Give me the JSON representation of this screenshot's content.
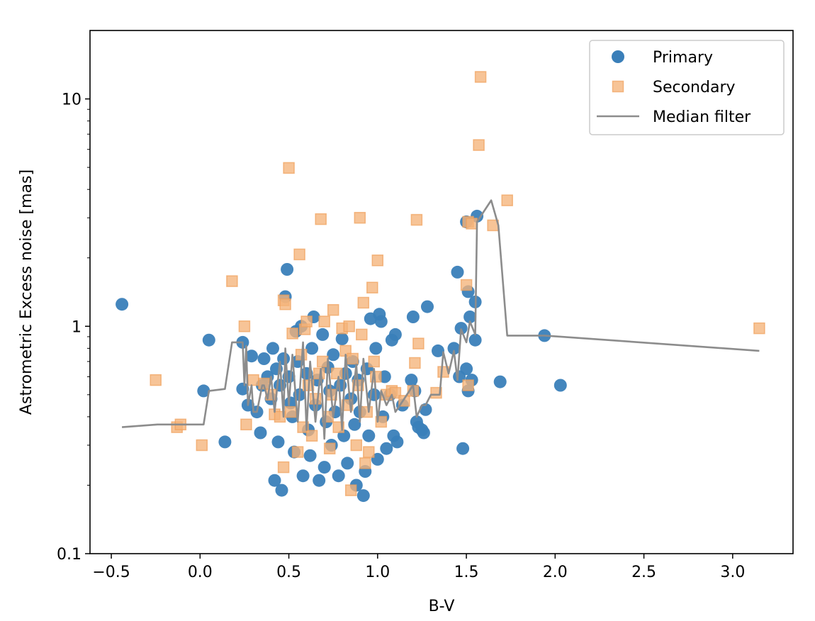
{
  "chart_data": {
    "type": "scatter",
    "title": "",
    "xlabel": "B-V",
    "ylabel": "Astrometric Excess noise [mas]",
    "xlim": [
      -0.62,
      3.34
    ],
    "ylim": [
      0.1,
      20
    ],
    "yscale": "log",
    "grid": false,
    "legend_position": "top-right",
    "xticks": [
      {
        "value": -0.5,
        "label": "−0.5"
      },
      {
        "value": 0.0,
        "label": "0.0"
      },
      {
        "value": 0.5,
        "label": "0.5"
      },
      {
        "value": 1.0,
        "label": "1.0"
      },
      {
        "value": 1.5,
        "label": "1.5"
      },
      {
        "value": 2.0,
        "label": "2.0"
      },
      {
        "value": 2.5,
        "label": "2.5"
      },
      {
        "value": 3.0,
        "label": "3.0"
      }
    ],
    "yticks": [
      {
        "value": 0.1,
        "label": "0.1"
      },
      {
        "value": 1,
        "label": "1"
      },
      {
        "value": 10,
        "label": "10"
      }
    ],
    "legend": [
      {
        "name": "Primary",
        "marker": "circle",
        "color": "#3a7fb9"
      },
      {
        "name": "Secondary",
        "marker": "square",
        "color": "#f5b47a"
      },
      {
        "name": "Median filter",
        "marker": "line",
        "color": "#8c8c8c"
      }
    ],
    "series": [
      {
        "name": "Primary",
        "marker": "circle",
        "color": "#3a7fb9",
        "points": [
          [
            -0.44,
            1.25
          ],
          [
            0.02,
            0.52
          ],
          [
            0.05,
            0.87
          ],
          [
            0.14,
            0.31
          ],
          [
            0.24,
            0.85
          ],
          [
            0.24,
            0.53
          ],
          [
            0.27,
            0.45
          ],
          [
            0.29,
            0.74
          ],
          [
            0.32,
            0.42
          ],
          [
            0.34,
            0.34
          ],
          [
            0.35,
            0.55
          ],
          [
            0.36,
            0.72
          ],
          [
            0.38,
            0.6
          ],
          [
            0.4,
            0.48
          ],
          [
            0.41,
            0.8
          ],
          [
            0.42,
            0.21
          ],
          [
            0.43,
            0.65
          ],
          [
            0.44,
            0.31
          ],
          [
            0.45,
            0.55
          ],
          [
            0.46,
            0.19
          ],
          [
            0.47,
            0.72
          ],
          [
            0.48,
            1.35
          ],
          [
            0.49,
            1.78
          ],
          [
            0.5,
            0.6
          ],
          [
            0.51,
            0.46
          ],
          [
            0.52,
            0.4
          ],
          [
            0.53,
            0.28
          ],
          [
            0.54,
            0.95
          ],
          [
            0.55,
            0.7
          ],
          [
            0.56,
            0.5
          ],
          [
            0.57,
            1.0
          ],
          [
            0.58,
            0.22
          ],
          [
            0.6,
            0.62
          ],
          [
            0.61,
            0.35
          ],
          [
            0.62,
            0.27
          ],
          [
            0.63,
            0.8
          ],
          [
            0.64,
            1.1
          ],
          [
            0.65,
            0.45
          ],
          [
            0.66,
            0.58
          ],
          [
            0.67,
            0.21
          ],
          [
            0.69,
            0.92
          ],
          [
            0.7,
            0.24
          ],
          [
            0.71,
            0.38
          ],
          [
            0.72,
            0.66
          ],
          [
            0.73,
            0.52
          ],
          [
            0.74,
            0.3
          ],
          [
            0.75,
            0.75
          ],
          [
            0.76,
            0.42
          ],
          [
            0.78,
            0.22
          ],
          [
            0.79,
            0.55
          ],
          [
            0.8,
            0.88
          ],
          [
            0.81,
            0.33
          ],
          [
            0.82,
            0.62
          ],
          [
            0.83,
            0.25
          ],
          [
            0.85,
            0.48
          ],
          [
            0.86,
            0.7
          ],
          [
            0.87,
            0.37
          ],
          [
            0.88,
            0.2
          ],
          [
            0.89,
            0.58
          ],
          [
            0.9,
            0.42
          ],
          [
            0.92,
            0.18
          ],
          [
            0.93,
            0.23
          ],
          [
            0.94,
            0.65
          ],
          [
            0.95,
            0.33
          ],
          [
            0.96,
            1.08
          ],
          [
            0.98,
            0.5
          ],
          [
            0.99,
            0.8
          ],
          [
            1.0,
            0.26
          ],
          [
            1.01,
            1.13
          ],
          [
            1.02,
            1.05
          ],
          [
            1.03,
            0.4
          ],
          [
            1.04,
            0.6
          ],
          [
            1.05,
            0.29
          ],
          [
            1.07,
            0.5
          ],
          [
            1.08,
            0.87
          ],
          [
            1.09,
            0.33
          ],
          [
            1.1,
            0.92
          ],
          [
            1.11,
            0.31
          ],
          [
            1.14,
            0.45
          ],
          [
            1.19,
            0.58
          ],
          [
            1.2,
            1.1
          ],
          [
            1.21,
            0.52
          ],
          [
            1.22,
            0.38
          ],
          [
            1.23,
            0.36
          ],
          [
            1.25,
            0.35
          ],
          [
            1.26,
            0.34
          ],
          [
            1.27,
            0.43
          ],
          [
            1.28,
            1.22
          ],
          [
            1.34,
            0.78
          ],
          [
            1.43,
            0.8
          ],
          [
            1.45,
            1.73
          ],
          [
            1.46,
            0.6
          ],
          [
            1.47,
            0.98
          ],
          [
            1.48,
            0.29
          ],
          [
            1.5,
            0.65
          ],
          [
            1.5,
            2.88
          ],
          [
            1.51,
            1.42
          ],
          [
            1.52,
            1.1
          ],
          [
            1.51,
            0.52
          ],
          [
            1.53,
            0.58
          ],
          [
            1.55,
            1.28
          ],
          [
            1.55,
            0.87
          ],
          [
            1.56,
            3.05
          ],
          [
            1.69,
            0.57
          ],
          [
            1.94,
            0.91
          ],
          [
            2.03,
            0.55
          ]
        ]
      },
      {
        "name": "Secondary",
        "marker": "square",
        "color": "#f5b47a",
        "points": [
          [
            -0.25,
            0.58
          ],
          [
            -0.13,
            0.36
          ],
          [
            -0.11,
            0.37
          ],
          [
            0.01,
            0.3
          ],
          [
            0.18,
            1.58
          ],
          [
            0.25,
            1.0
          ],
          [
            0.26,
            0.37
          ],
          [
            0.3,
            0.58
          ],
          [
            0.36,
            0.56
          ],
          [
            0.4,
            0.5
          ],
          [
            0.42,
            0.41
          ],
          [
            0.45,
            0.4
          ],
          [
            0.47,
            1.3
          ],
          [
            0.47,
            0.24
          ],
          [
            0.48,
            1.25
          ],
          [
            0.5,
            4.97
          ],
          [
            0.51,
            0.42
          ],
          [
            0.52,
            0.93
          ],
          [
            0.55,
            0.28
          ],
          [
            0.56,
            2.07
          ],
          [
            0.57,
            0.75
          ],
          [
            0.58,
            0.36
          ],
          [
            0.59,
            0.97
          ],
          [
            0.6,
            1.05
          ],
          [
            0.61,
            0.55
          ],
          [
            0.63,
            0.33
          ],
          [
            0.65,
            0.48
          ],
          [
            0.67,
            0.62
          ],
          [
            0.68,
            2.96
          ],
          [
            0.69,
            0.7
          ],
          [
            0.7,
            1.05
          ],
          [
            0.72,
            0.4
          ],
          [
            0.73,
            0.29
          ],
          [
            0.74,
            0.5
          ],
          [
            0.75,
            1.18
          ],
          [
            0.77,
            0.62
          ],
          [
            0.78,
            0.36
          ],
          [
            0.8,
            0.98
          ],
          [
            0.82,
            0.78
          ],
          [
            0.83,
            0.45
          ],
          [
            0.84,
            1.0
          ],
          [
            0.85,
            0.19
          ],
          [
            0.86,
            0.72
          ],
          [
            0.88,
            0.3
          ],
          [
            0.89,
            0.55
          ],
          [
            0.9,
            3.0
          ],
          [
            0.91,
            0.92
          ],
          [
            0.92,
            1.27
          ],
          [
            0.93,
            0.25
          ],
          [
            0.94,
            0.42
          ],
          [
            0.95,
            0.28
          ],
          [
            0.97,
            1.48
          ],
          [
            0.98,
            0.7
          ],
          [
            0.99,
            0.6
          ],
          [
            1.0,
            1.95
          ],
          [
            1.02,
            0.38
          ],
          [
            1.05,
            0.5
          ],
          [
            1.08,
            0.52
          ],
          [
            1.1,
            0.51
          ],
          [
            1.15,
            0.47
          ],
          [
            1.2,
            0.52
          ],
          [
            1.21,
            0.69
          ],
          [
            1.22,
            2.94
          ],
          [
            1.23,
            0.84
          ],
          [
            1.33,
            0.51
          ],
          [
            1.37,
            0.63
          ],
          [
            1.5,
            1.52
          ],
          [
            1.51,
            0.55
          ],
          [
            1.51,
            2.88
          ],
          [
            1.53,
            2.83
          ],
          [
            1.57,
            6.27
          ],
          [
            1.58,
            12.5
          ],
          [
            1.65,
            2.78
          ],
          [
            1.73,
            3.58
          ],
          [
            3.15,
            0.98
          ]
        ]
      }
    ],
    "median_filter": {
      "name": "Median filter",
      "color": "#8c8c8c",
      "x": [
        -0.44,
        -0.24,
        0.02,
        0.05,
        0.14,
        0.18,
        0.24,
        0.25,
        0.26,
        0.27,
        0.29,
        0.3,
        0.32,
        0.35,
        0.36,
        0.38,
        0.4,
        0.42,
        0.45,
        0.47,
        0.48,
        0.5,
        0.52,
        0.55,
        0.58,
        0.6,
        0.62,
        0.65,
        0.68,
        0.7,
        0.72,
        0.75,
        0.78,
        0.8,
        0.82,
        0.85,
        0.88,
        0.9,
        0.92,
        0.95,
        0.98,
        1.0,
        1.02,
        1.05,
        1.08,
        1.1,
        1.15,
        1.2,
        1.22,
        1.25,
        1.27,
        1.3,
        1.35,
        1.37,
        1.4,
        1.43,
        1.45,
        1.47,
        1.5,
        1.52,
        1.55,
        1.56,
        1.64,
        1.68,
        1.73,
        1.94,
        2.03,
        3.15
      ],
      "y": [
        0.36,
        0.37,
        0.37,
        0.52,
        0.53,
        0.85,
        0.85,
        0.55,
        0.82,
        0.45,
        0.55,
        0.42,
        0.42,
        0.55,
        0.55,
        0.48,
        0.6,
        0.42,
        0.7,
        0.4,
        0.8,
        0.45,
        0.75,
        0.38,
        0.85,
        0.35,
        0.7,
        0.38,
        0.65,
        0.32,
        0.72,
        0.4,
        0.6,
        0.35,
        0.75,
        0.42,
        0.68,
        0.38,
        0.72,
        0.42,
        0.65,
        0.38,
        0.52,
        0.45,
        0.5,
        0.42,
        0.48,
        0.55,
        0.4,
        0.45,
        0.45,
        0.5,
        0.5,
        0.77,
        0.62,
        0.78,
        0.58,
        0.97,
        0.85,
        1.05,
        0.92,
        2.88,
        3.58,
        2.78,
        0.91,
        0.91,
        0.9,
        0.78
      ]
    }
  }
}
